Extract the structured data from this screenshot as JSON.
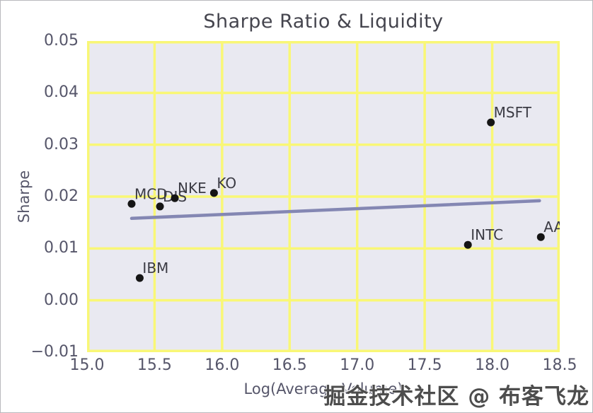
{
  "figure": {
    "watermark": "掘金技术社区 @ 布客飞龙"
  },
  "chart_data": {
    "type": "scatter",
    "title": "Sharpe Ratio & Liquidity",
    "xlabel": "Log(Average Volume)",
    "ylabel": "Sharpe",
    "xlim": [
      15.0,
      18.5
    ],
    "ylim": [
      -0.01,
      0.05
    ],
    "grid": true,
    "legend": "none",
    "x_tick_values": [
      15.0,
      15.5,
      16.0,
      16.5,
      17.0,
      17.5,
      18.0,
      18.5
    ],
    "x_tick_labels": [
      "15.0",
      "15.5",
      "16.0",
      "16.5",
      "17.0",
      "17.5",
      "18.0",
      "18.5"
    ],
    "y_tick_values": [
      0.05,
      0.04,
      0.03,
      0.02,
      0.01,
      0.0,
      -0.01
    ],
    "y_tick_labels": [
      "0.05",
      "0.04",
      "0.03",
      "0.02",
      "0.01",
      "0.00",
      "−0.01"
    ],
    "points": [
      {
        "label": "MCD",
        "x": 15.33,
        "y": 0.0186
      },
      {
        "label": "DIS",
        "x": 15.54,
        "y": 0.0181
      },
      {
        "label": "NKE",
        "x": 15.65,
        "y": 0.0197
      },
      {
        "label": "KO",
        "x": 15.94,
        "y": 0.0207
      },
      {
        "label": "IBM",
        "x": 15.39,
        "y": 0.0043
      },
      {
        "label": "INTC",
        "x": 17.82,
        "y": 0.0107
      },
      {
        "label": "MSFT",
        "x": 17.99,
        "y": 0.0343
      },
      {
        "label": "AAPL",
        "x": 18.36,
        "y": 0.0122
      }
    ],
    "trendline": {
      "x": [
        15.33,
        18.35
      ],
      "y": [
        0.0158,
        0.0192
      ]
    },
    "colors": {
      "plot_background": "#e9e9f1",
      "grid": "#f9f776",
      "trendline": "#8487b3",
      "marker": "#151515",
      "tick_text": "#56566a",
      "title_text": "#45454e",
      "annotation_text": "#3b3b44",
      "watermark_text": "#4d4d4d"
    }
  }
}
